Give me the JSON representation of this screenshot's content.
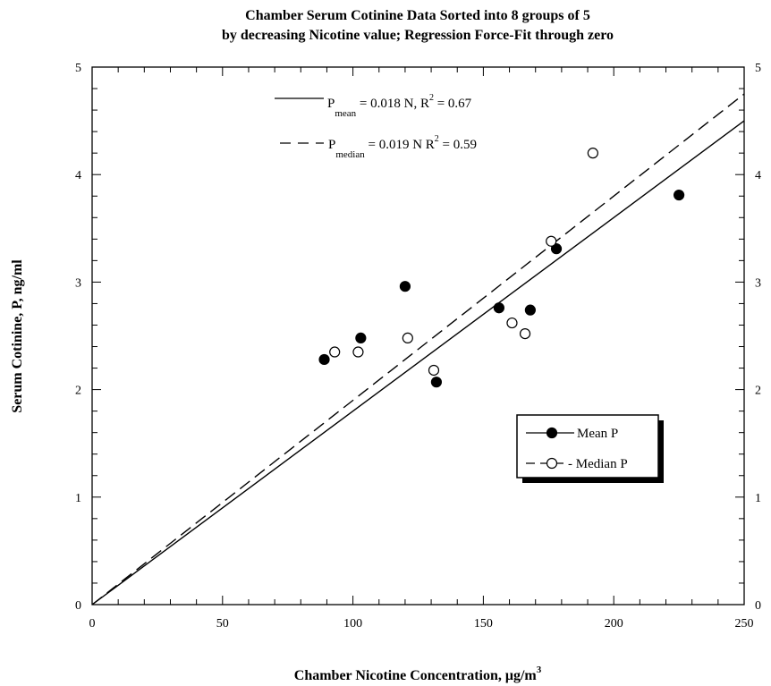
{
  "chart_data": {
    "type": "scatter",
    "title_line1": "Chamber Serum Cotinine Data Sorted into 8 groups of 5",
    "title_line2": "by decreasing Nicotine value; Regression Force-Fit through zero",
    "xlabel": "Chamber Nicotine Concentration, μg/m",
    "xlabel_sup": "3",
    "ylabel": "Serum Cotinine, P, ng/ml",
    "xlim": [
      0,
      250
    ],
    "ylim": [
      0,
      5
    ],
    "x_ticks": [
      0,
      50,
      100,
      150,
      200,
      250
    ],
    "y_ticks": [
      0,
      1,
      2,
      3,
      4,
      5
    ],
    "series": [
      {
        "name": "Mean P",
        "marker": "filled-circle",
        "points": [
          {
            "x": 89,
            "y": 2.28
          },
          {
            "x": 103,
            "y": 2.48
          },
          {
            "x": 120,
            "y": 2.96
          },
          {
            "x": 132,
            "y": 2.07
          },
          {
            "x": 156,
            "y": 2.76
          },
          {
            "x": 168,
            "y": 2.74
          },
          {
            "x": 178,
            "y": 3.31
          },
          {
            "x": 225,
            "y": 3.81
          }
        ]
      },
      {
        "name": "Median P",
        "marker": "open-circle",
        "points": [
          {
            "x": 93,
            "y": 2.35
          },
          {
            "x": 102,
            "y": 2.35
          },
          {
            "x": 121,
            "y": 2.48
          },
          {
            "x": 131,
            "y": 2.18
          },
          {
            "x": 161,
            "y": 2.62
          },
          {
            "x": 166,
            "y": 2.52
          },
          {
            "x": 176,
            "y": 3.38
          },
          {
            "x": 192,
            "y": 4.2
          }
        ]
      }
    ],
    "regressions": [
      {
        "series": "Mean P",
        "style": "solid",
        "slope": 0.018,
        "label_main": "P",
        "label_sub": "mean",
        "label_mid": " = 0.018 N, R",
        "label_sup": "2",
        "label_end": " = 0.67"
      },
      {
        "series": "Median P",
        "style": "dashed",
        "slope": 0.019,
        "label_main": "P",
        "label_sub": "median",
        "label_mid": " = 0.019 N   R",
        "label_sup": "2",
        "label_end": " = 0.59"
      }
    ],
    "legend": {
      "placement": "lower-right",
      "entries": [
        {
          "label": "Mean P",
          "marker": "filled-circle",
          "line": "solid"
        },
        {
          "label": "- Median P",
          "marker": "open-circle",
          "line": "dashed"
        }
      ]
    },
    "grid": false,
    "colors": {
      "ink": "#000000",
      "background": "#ffffff"
    }
  }
}
